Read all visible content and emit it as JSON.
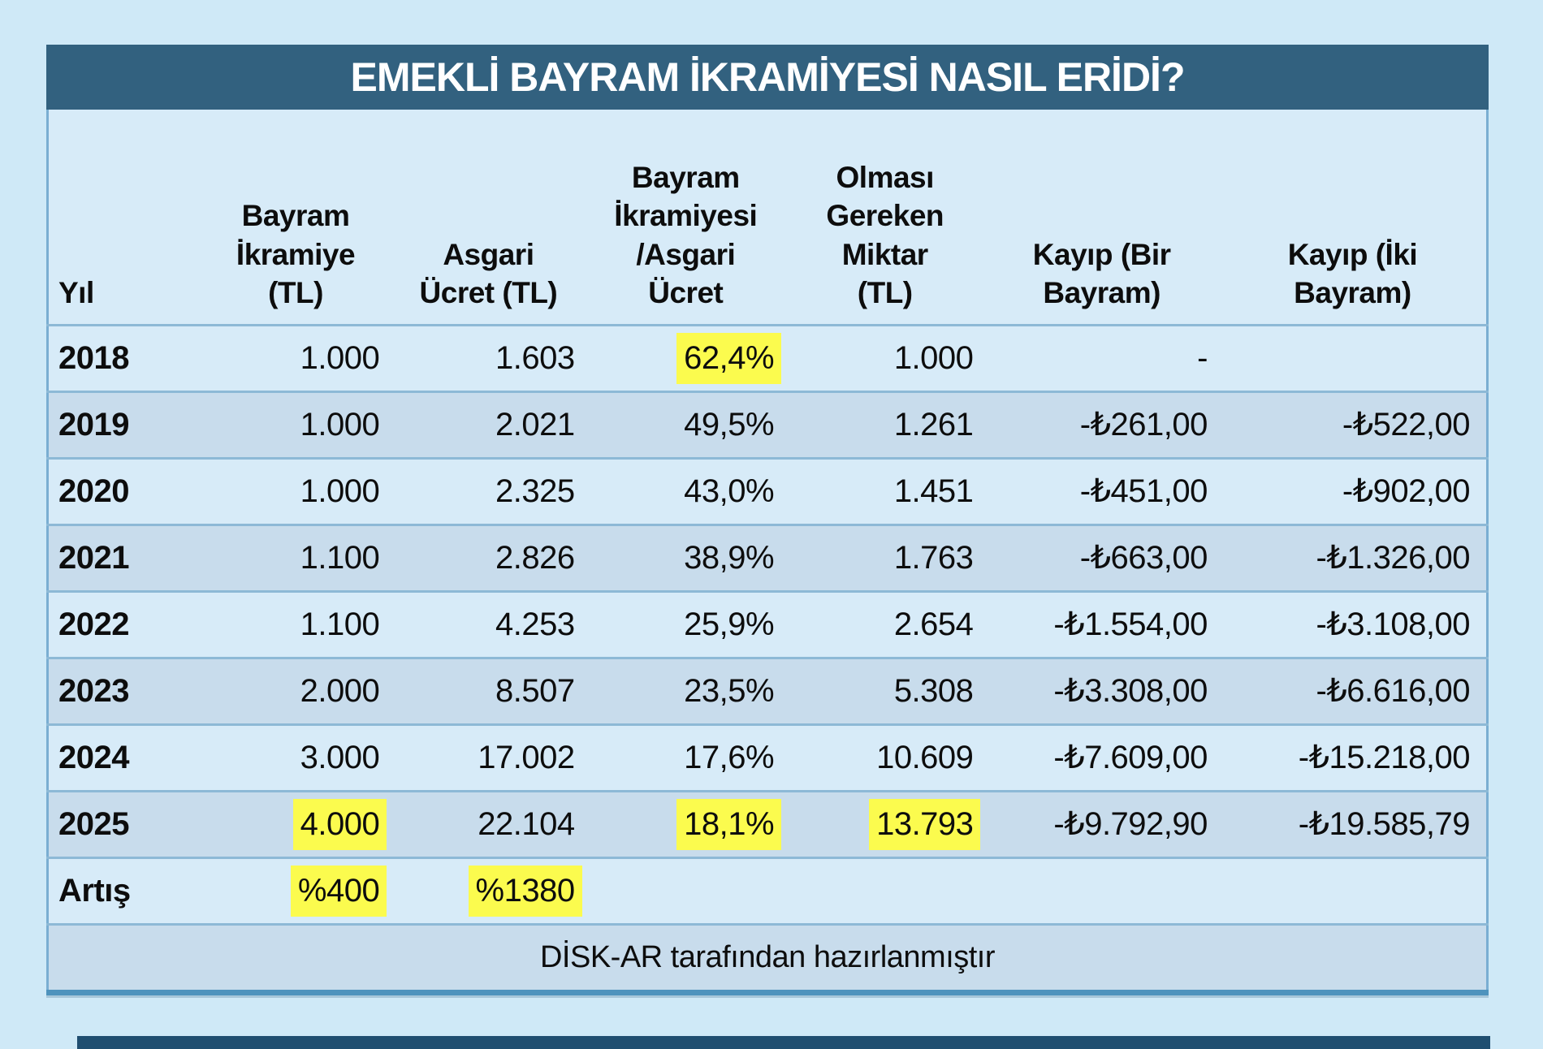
{
  "title_bar": {
    "text": "EMEKLİ BAYRAM İKRAMİYESİ NASIL ERİDİ?"
  },
  "table": {
    "columns": [
      "Yıl",
      "Bayram\nİkramiye\n(TL)",
      "Asgari\nÜcret (TL)",
      "Bayram\nİkramiyesi\n/Asgari\nÜcret",
      "Olması\nGereken\nMiktar\n(TL)",
      "Kayıp (Bir\nBayram)",
      "Kayıp (İki\nBayram)"
    ],
    "rows": [
      {
        "cells": [
          "2018",
          "1.000",
          "1.603",
          "62,4%",
          "1.000",
          "-",
          ""
        ],
        "highlights": [
          3
        ]
      },
      {
        "cells": [
          "2019",
          "1.000",
          "2.021",
          "49,5%",
          "1.261",
          "-₺261,00",
          "-₺522,00"
        ],
        "highlights": []
      },
      {
        "cells": [
          "2020",
          "1.000",
          "2.325",
          "43,0%",
          "1.451",
          "-₺451,00",
          "-₺902,00"
        ],
        "highlights": []
      },
      {
        "cells": [
          "2021",
          "1.100",
          "2.826",
          "38,9%",
          "1.763",
          "-₺663,00",
          "-₺1.326,00"
        ],
        "highlights": []
      },
      {
        "cells": [
          "2022",
          "1.100",
          "4.253",
          "25,9%",
          "2.654",
          "-₺1.554,00",
          "-₺3.108,00"
        ],
        "highlights": []
      },
      {
        "cells": [
          "2023",
          "2.000",
          "8.507",
          "23,5%",
          "5.308",
          "-₺3.308,00",
          "-₺6.616,00"
        ],
        "highlights": []
      },
      {
        "cells": [
          "2024",
          "3.000",
          "17.002",
          "17,6%",
          "10.609",
          "-₺7.609,00",
          "-₺15.218,00"
        ],
        "highlights": []
      },
      {
        "cells": [
          "2025",
          "4.000",
          "22.104",
          "18,1%",
          "13.793",
          "-₺9.792,90",
          "-₺19.585,79"
        ],
        "highlights": [
          1,
          3,
          4
        ]
      },
      {
        "cells": [
          "Artış",
          "%400",
          "%1380",
          "",
          "",
          "",
          ""
        ],
        "highlights": [
          1,
          2
        ]
      }
    ],
    "footer": "DİSK-AR tarafından hazırlanmıştır"
  },
  "colors": {
    "page_background": "#cfe9f7",
    "title_background": "#32617f",
    "row_light": "#d7ebf8",
    "row_dark": "#c8dcec",
    "separator": "#8db9d6",
    "outer_border": "#7aaed2",
    "bottom_border": "#4e93bd",
    "highlight_yellow": "#fbfb4e",
    "bottom_bar": "#1f4e70"
  },
  "chart_data": {
    "type": "table",
    "title": "EMEKLİ BAYRAM İKRAMİYESİ NASIL ERİDİ?",
    "columns": [
      "Yıl",
      "Bayram İkramiye (TL)",
      "Asgari Ücret (TL)",
      "Bayram İkramiyesi/Asgari Ücret",
      "Olması Gereken Miktar (TL)",
      "Kayıp (Bir Bayram)",
      "Kayıp (İki Bayram)"
    ],
    "rows": [
      [
        "2018",
        "1.000",
        "1.603",
        "62,4%",
        "1.000",
        "-",
        ""
      ],
      [
        "2019",
        "1.000",
        "2.021",
        "49,5%",
        "1.261",
        "-₺261,00",
        "-₺522,00"
      ],
      [
        "2020",
        "1.000",
        "2.325",
        "43,0%",
        "1.451",
        "-₺451,00",
        "-₺902,00"
      ],
      [
        "2021",
        "1.100",
        "2.826",
        "38,9%",
        "1.763",
        "-₺663,00",
        "-₺1.326,00"
      ],
      [
        "2022",
        "1.100",
        "4.253",
        "25,9%",
        "2.654",
        "-₺1.554,00",
        "-₺3.108,00"
      ],
      [
        "2023",
        "2.000",
        "8.507",
        "23,5%",
        "5.308",
        "-₺3.308,00",
        "-₺6.616,00"
      ],
      [
        "2024",
        "3.000",
        "17.002",
        "17,6%",
        "10.609",
        "-₺7.609,00",
        "-₺15.218,00"
      ],
      [
        "2025",
        "4.000",
        "22.104",
        "18,1%",
        "13.793",
        "-₺9.792,90",
        "-₺19.585,79"
      ],
      [
        "Artış",
        "%400",
        "%1380",
        "",
        "",
        "",
        ""
      ]
    ],
    "highlighted_cells": [
      {
        "row": "2018",
        "column": "Bayram İkramiyesi/Asgari Ücret",
        "value": "62,4%"
      },
      {
        "row": "2025",
        "column": "Bayram İkramiye (TL)",
        "value": "4.000"
      },
      {
        "row": "2025",
        "column": "Bayram İkramiyesi/Asgari Ücret",
        "value": "18,1%"
      },
      {
        "row": "2025",
        "column": "Olması Gereken Miktar (TL)",
        "value": "13.793"
      },
      {
        "row": "Artış",
        "column": "Bayram İkramiye (TL)",
        "value": "%400"
      },
      {
        "row": "Artış",
        "column": "Asgari Ücret (TL)",
        "value": "%1380"
      }
    ],
    "source": "DİSK-AR tarafından hazırlanmıştır"
  }
}
